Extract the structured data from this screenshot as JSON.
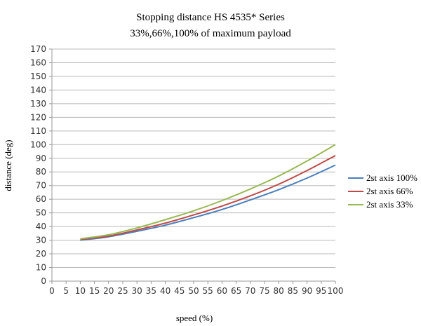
{
  "chart_data": {
    "type": "line",
    "title": "Stopping distance HS 4535* Series",
    "subtitle": "33%,66%,100% of maximum payload",
    "xlabel": "speed (%)",
    "ylabel": "distance (deg)",
    "xlim": [
      0,
      100
    ],
    "ylim": [
      0,
      170
    ],
    "xticks": [
      "0",
      "5",
      "10",
      "15",
      "20",
      "25",
      "30",
      "35",
      "40",
      "45",
      "50",
      "55",
      "60",
      "65",
      "70",
      "75",
      "80",
      "85",
      "90",
      "95",
      "100"
    ],
    "yticks": [
      "0",
      "10",
      "20",
      "30",
      "40",
      "50",
      "60",
      "70",
      "80",
      "90",
      "100",
      "110",
      "120",
      "130",
      "140",
      "150",
      "160",
      "170"
    ],
    "grid": "horizontal",
    "legend_position": "right",
    "x": [
      10,
      20,
      30,
      40,
      50,
      60,
      70,
      80,
      90,
      100
    ],
    "series": [
      {
        "name": "2st axis 100%",
        "color": "#4a7ebb",
        "values": [
          30,
          32.5,
          36.5,
          41,
          46.5,
          52.5,
          59.5,
          67,
          75.5,
          85
        ]
      },
      {
        "name": "2st axis 66%",
        "color": "#be4b48",
        "values": [
          30.5,
          33,
          37.5,
          42.5,
          48.5,
          55,
          62.5,
          71,
          81,
          92
        ]
      },
      {
        "name": "2st axis 33%",
        "color": "#98b954",
        "values": [
          31,
          34,
          39,
          45,
          51.5,
          59,
          67.5,
          77,
          88,
          100
        ]
      }
    ]
  }
}
